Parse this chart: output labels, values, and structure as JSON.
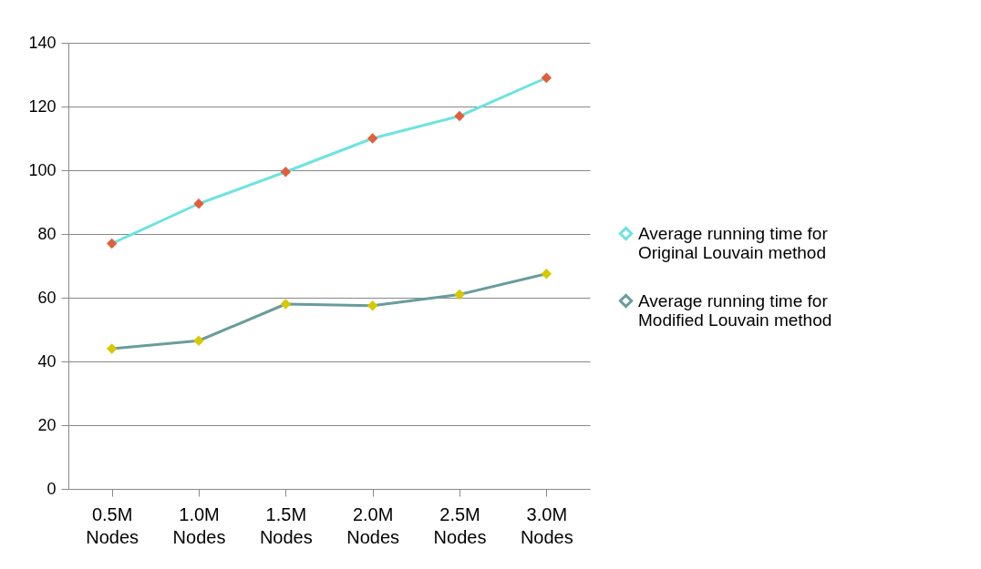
{
  "chart_data": {
    "type": "line",
    "categories": [
      "0.5M Nodes",
      "1.0M Nodes",
      "1.5M Nodes",
      "2.0M Nodes",
      "2.5M Nodes",
      "3.0M Nodes"
    ],
    "series": [
      {
        "name": "Average running time for Original Louvain method",
        "color": "#6ee3df",
        "colors": [
          "#e0603c",
          "#e0603c",
          "#e0603c",
          "#e0603c",
          "#e0603c",
          "#e0603c"
        ],
        "values": [
          77,
          89.5,
          99.5,
          110,
          117,
          129
        ]
      },
      {
        "name": "Average running time for Modified Louvain method",
        "color": "#6a9c9c",
        "colors": [
          "#d8c800",
          "#d8c800",
          "#d8c800",
          "#d8c800",
          "#d8c800",
          "#d8c800"
        ],
        "values": [
          44,
          46.5,
          58,
          57.5,
          61,
          67.5
        ]
      }
    ],
    "ylim": [
      0,
      140
    ],
    "yticks": [
      0,
      20,
      40,
      60,
      80,
      100,
      120,
      140
    ],
    "grid": "y",
    "legend": "right",
    "marker": "diamond",
    "line_style": "solid"
  }
}
